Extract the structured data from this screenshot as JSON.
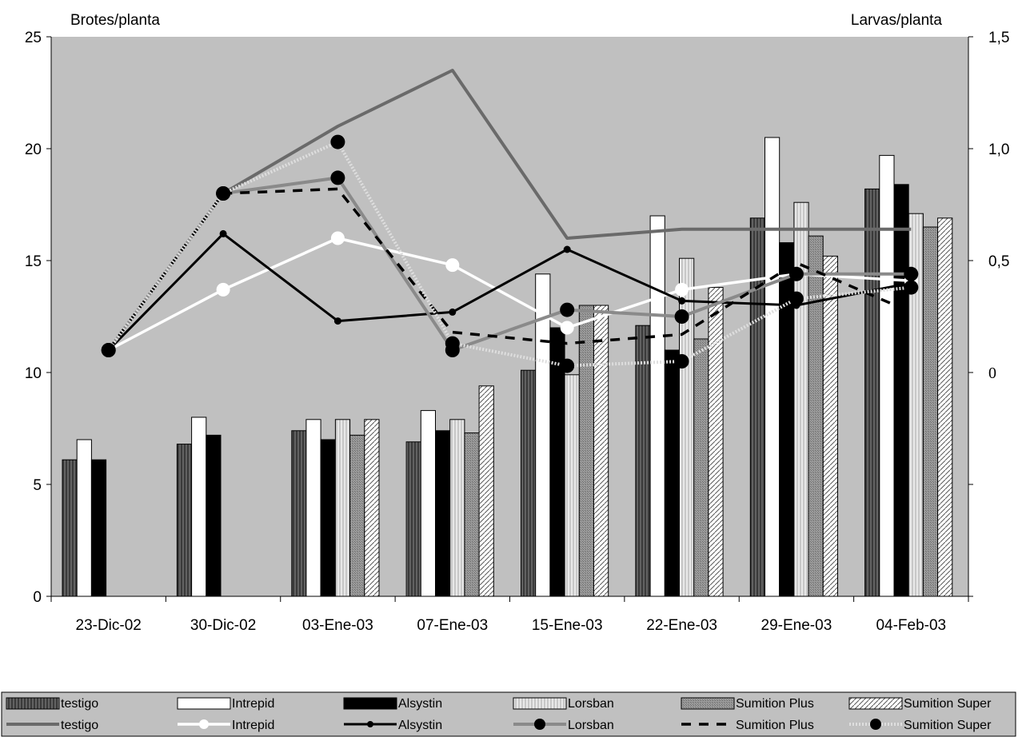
{
  "chart_data": {
    "type": "bar",
    "title": "",
    "ylabel_left": "Brotes/planta",
    "ylabel_right": "Larvas/planta",
    "categories": [
      "23-Dic-02",
      "30-Dic-02",
      "03-Ene-03",
      "07-Ene-03",
      "15-Ene-03",
      "22-Ene-03",
      "29-Ene-03",
      "04-Feb-03"
    ],
    "ylim_left": [
      0,
      25
    ],
    "yticks_left": [
      "0",
      "5",
      "10",
      "15",
      "20",
      "25"
    ],
    "ylim_right": [
      -1.0,
      1.5
    ],
    "yticks_right": [
      {
        "value": 0,
        "label": "0"
      },
      {
        "value": 0.5,
        "label": "0,5"
      },
      {
        "value": 1.0,
        "label": "1,0"
      },
      {
        "value": 1.5,
        "label": "1,5"
      }
    ],
    "grid": false,
    "legend_position": "bottom",
    "bar_series": [
      {
        "name": "testigo",
        "values": [
          6.1,
          6.8,
          7.4,
          6.9,
          10.1,
          12.1,
          16.9,
          18.2
        ]
      },
      {
        "name": "Intrepid",
        "values": [
          7.0,
          8.0,
          7.9,
          8.3,
          14.4,
          17.0,
          20.5,
          19.7
        ]
      },
      {
        "name": "Alsystin",
        "values": [
          6.1,
          7.2,
          7.0,
          7.4,
          12.0,
          11.0,
          15.8,
          18.4
        ]
      },
      {
        "name": "Lorsban",
        "values": [
          null,
          null,
          7.9,
          7.9,
          9.9,
          15.1,
          17.6,
          17.1
        ]
      },
      {
        "name": "Sumition Plus",
        "values": [
          null,
          null,
          7.2,
          7.3,
          13.0,
          11.5,
          16.1,
          16.5
        ]
      },
      {
        "name": "Sumition Super",
        "values": [
          null,
          null,
          7.9,
          9.4,
          13.0,
          13.8,
          15.2,
          16.9
        ]
      }
    ],
    "line_series": [
      {
        "name": "testigo",
        "values": [
          0.1,
          0.8,
          1.1,
          1.35,
          0.6,
          0.64,
          0.64,
          0.64
        ]
      },
      {
        "name": "Intrepid",
        "values": [
          0.1,
          0.37,
          0.6,
          0.48,
          0.2,
          0.37,
          0.44,
          0.41
        ]
      },
      {
        "name": "Alsystin",
        "values": [
          0.1,
          0.62,
          0.23,
          0.27,
          0.55,
          0.32,
          0.3,
          0.4
        ]
      },
      {
        "name": "Lorsban",
        "values": [
          0.1,
          0.8,
          0.87,
          0.1,
          0.28,
          0.25,
          0.44,
          0.44
        ]
      },
      {
        "name": "Sumition Plus",
        "values": [
          0.1,
          0.8,
          0.82,
          0.18,
          0.13,
          0.17,
          0.49,
          0.27
        ]
      },
      {
        "name": "Sumition Super",
        "values": [
          0.1,
          0.8,
          1.03,
          0.13,
          0.03,
          0.05,
          0.33,
          0.38
        ]
      }
    ],
    "colors": {
      "plot_bg": "#c0c0c0",
      "testigo": "#555555",
      "Intrepid": "#ffffff",
      "Alsystin": "#000000",
      "Lorsban": "#d4d4d4",
      "Sumition Plus": "#8c8c8c",
      "Sumition Super": "#e6e6e6"
    }
  }
}
